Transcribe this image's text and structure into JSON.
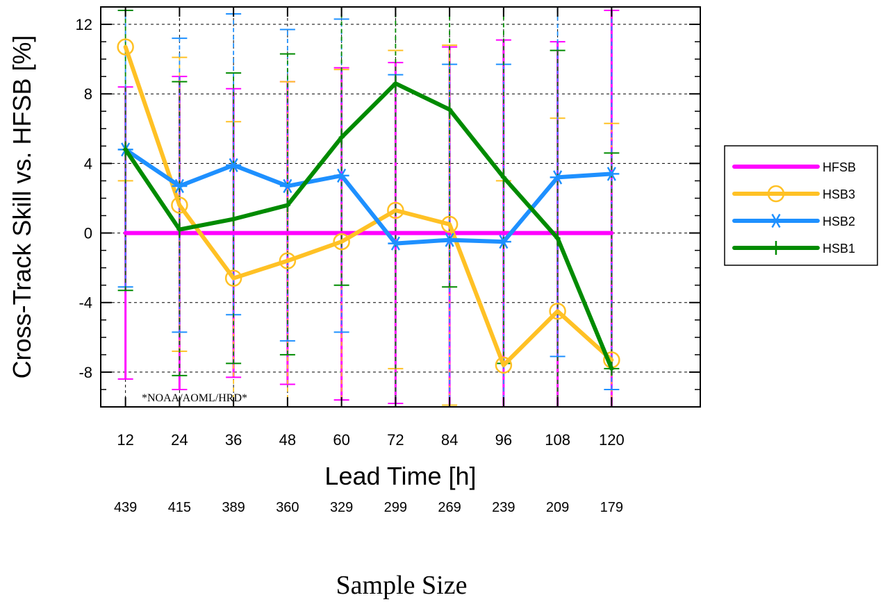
{
  "chart_data": {
    "type": "line",
    "xlabel": "Lead Time [h]",
    "ylabel": "Cross-Track Skill vs. HFSB [%]",
    "x": [
      12,
      24,
      36,
      48,
      60,
      72,
      84,
      96,
      108,
      120
    ],
    "xticks": [
      "12",
      "24",
      "36",
      "48",
      "60",
      "72",
      "84",
      "96",
      "108",
      "120"
    ],
    "ylim": [
      -10,
      13
    ],
    "yticks": [
      -8,
      -4,
      0,
      4,
      8,
      12
    ],
    "ytick_labels": [
      "-8",
      "-4",
      "0",
      "4",
      "8",
      "12"
    ],
    "grid": "dashed at major ticks",
    "legend_position": "right, outside plot",
    "sample_title": "Sample Size",
    "sample_sizes": [
      "439",
      "415",
      "389",
      "360",
      "329",
      "299",
      "269",
      "239",
      "209",
      "179"
    ],
    "annotation": "*NOAA/AOML/HRD*",
    "series": [
      {
        "name": "HFSB",
        "color": "#ff00ff",
        "marker": "none",
        "values": [
          0,
          0,
          0,
          0,
          0,
          0,
          0,
          0,
          0,
          0
        ],
        "err_low": [
          -8.4,
          -9.0,
          -8.3,
          -8.7,
          -9.6,
          -9.8,
          -10,
          -10,
          -10,
          -10
        ],
        "err_high": [
          8.4,
          9.0,
          8.3,
          8.7,
          9.5,
          9.8,
          10.7,
          11.1,
          11.0,
          12.8
        ]
      },
      {
        "name": "HSB3",
        "color": "#ffc125",
        "marker": "circle",
        "values": [
          10.7,
          1.6,
          -2.6,
          -1.6,
          -0.5,
          1.3,
          0.5,
          -7.6,
          -4.5,
          -7.3
        ],
        "err_low": [
          3.0,
          -6.8,
          -10,
          -10,
          -10,
          -7.8,
          -9.9,
          -10,
          -10,
          -10
        ],
        "err_high": [
          13,
          10.1,
          6.4,
          8.7,
          9.4,
          10.5,
          10.8,
          3.0,
          6.6,
          6.3
        ]
      },
      {
        "name": "HSB2",
        "color": "#1e90ff",
        "marker": "asterisk",
        "values": [
          4.8,
          2.7,
          3.9,
          2.7,
          3.3,
          -0.6,
          -0.4,
          -0.5,
          3.2,
          3.4
        ],
        "err_low": [
          -3.1,
          -5.7,
          -4.7,
          -6.2,
          -5.7,
          -10,
          -10,
          -10,
          -7.1,
          -9.0
        ],
        "err_high": [
          12.8,
          11.2,
          12.6,
          11.7,
          12.3,
          9.1,
          9.7,
          9.7,
          13,
          13
        ]
      },
      {
        "name": "HSB1",
        "color": "#008b00",
        "marker": "plus",
        "values": [
          4.8,
          0.2,
          0.8,
          1.6,
          5.5,
          8.6,
          7.1,
          3.2,
          -0.3,
          -7.8
        ],
        "err_low": [
          -3.3,
          -8.2,
          -7.5,
          -7.0,
          -3.0,
          -10,
          -3.1,
          -7.5,
          -10,
          -7.8
        ],
        "err_high": [
          12.8,
          8.7,
          9.2,
          10.3,
          13,
          13,
          13,
          13,
          10.5,
          4.6
        ]
      }
    ]
  }
}
